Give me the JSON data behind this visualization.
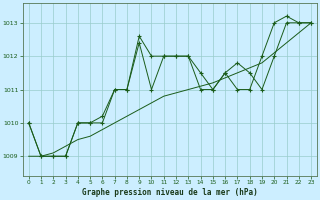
{
  "title": "Graphe pression niveau de la mer (hPa)",
  "background_color": "#cceeff",
  "grid_color": "#99cccc",
  "line_color": "#1a5c1a",
  "ylim": [
    1008.4,
    1013.6
  ],
  "xlim": [
    -0.5,
    23.5
  ],
  "yticks": [
    1009,
    1010,
    1011,
    1012,
    1013
  ],
  "xticks": [
    0,
    1,
    2,
    3,
    4,
    5,
    6,
    7,
    8,
    9,
    10,
    11,
    12,
    13,
    14,
    15,
    16,
    17,
    18,
    19,
    20,
    21,
    22,
    23
  ],
  "series1": [
    1010.0,
    1009.0,
    1009.0,
    1009.0,
    1010.0,
    1010.0,
    1010.2,
    1011.0,
    1011.0,
    1012.6,
    1012.0,
    1012.0,
    1012.0,
    1012.0,
    1011.5,
    1011.0,
    1011.5,
    1011.0,
    1011.0,
    1012.0,
    1013.0,
    1013.2,
    1013.0,
    1013.0
  ],
  "series2": [
    1010.0,
    1009.0,
    1009.0,
    1009.0,
    1010.0,
    1010.0,
    1010.0,
    1011.0,
    1011.0,
    1012.4,
    1011.0,
    1012.0,
    1012.0,
    1012.0,
    1011.0,
    1011.0,
    1011.5,
    1011.8,
    1011.5,
    1011.0,
    1012.0,
    1013.0,
    1013.0,
    1013.0
  ],
  "series3": [
    1009.0,
    1009.0,
    1009.1,
    1009.3,
    1009.5,
    1009.6,
    1009.8,
    1010.0,
    1010.2,
    1010.4,
    1010.6,
    1010.8,
    1010.9,
    1011.0,
    1011.1,
    1011.2,
    1011.35,
    1011.5,
    1011.65,
    1011.8,
    1012.1,
    1012.4,
    1012.7,
    1013.0
  ]
}
